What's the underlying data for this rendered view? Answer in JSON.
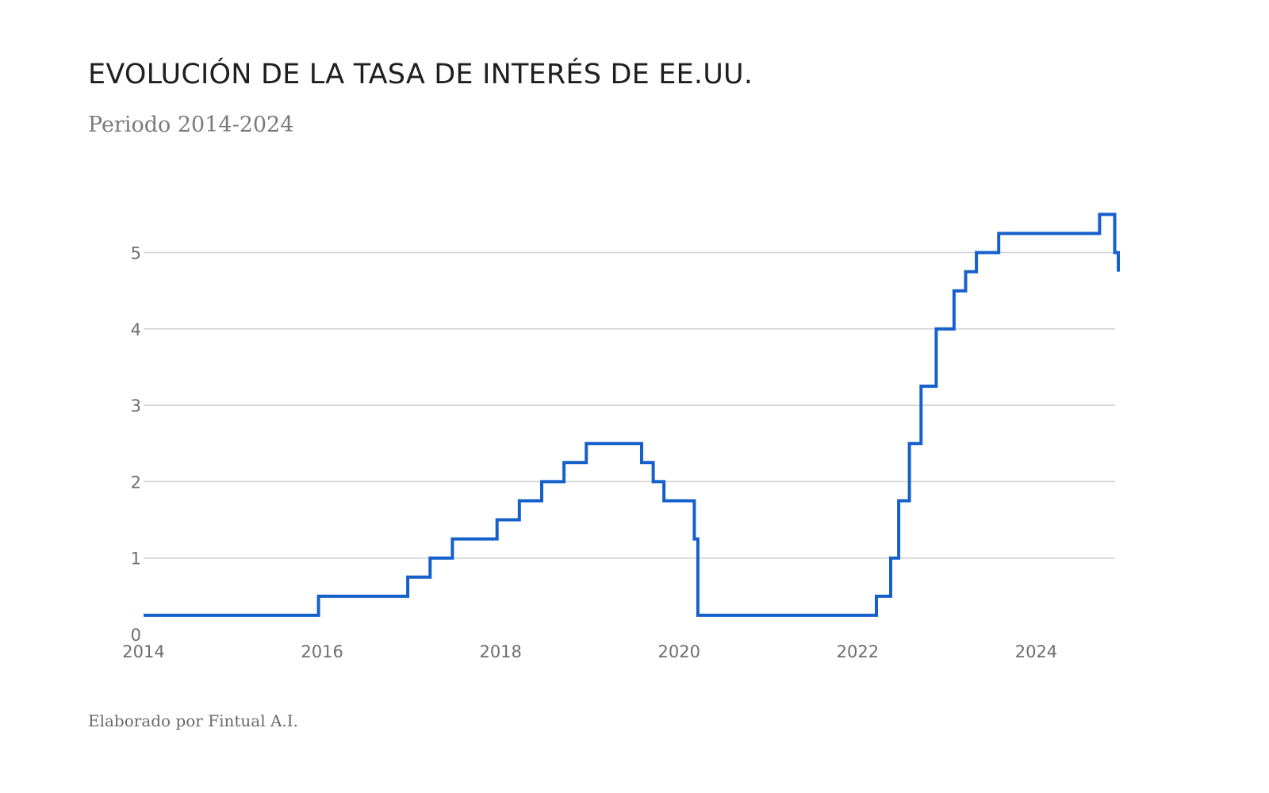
{
  "header": {
    "title": "EVOLUCIÓN DE LA TASA DE INTERÉS DE EE.UU.",
    "subtitle": "Periodo 2014-2024"
  },
  "footer": {
    "credit": "Elaborado por Fintual A.I."
  },
  "colors": {
    "line": "#1660cc",
    "grid": "#cfcfcf",
    "tick_text": "#6e6e6e"
  },
  "chart_data": {
    "type": "line",
    "step": true,
    "title": "EVOLUCIÓN DE LA TASA DE INTERÉS DE EE.UU.",
    "subtitle": "Periodo 2014-2024",
    "xlabel": "",
    "ylabel": "",
    "xlim": [
      2014,
      2024.92
    ],
    "ylim": [
      0,
      5.6
    ],
    "grid": true,
    "x_ticks": [
      2014,
      2016,
      2018,
      2020,
      2022,
      2024
    ],
    "y_ticks": [
      0,
      1,
      2,
      3,
      4,
      5
    ],
    "series": [
      {
        "x": [
          2014.0,
          2015.96,
          2016.96,
          2017.21,
          2017.46,
          2017.96,
          2018.21,
          2018.46,
          2018.71,
          2018.96,
          2019.58,
          2019.71,
          2019.83,
          2020.17,
          2020.21,
          2022.21,
          2022.37,
          2022.46,
          2022.58,
          2022.71,
          2022.88,
          2023.08,
          2023.21,
          2023.33,
          2023.58,
          2024.71,
          2024.88,
          2024.92
        ],
        "y": [
          0.25,
          0.5,
          0.75,
          1.0,
          1.25,
          1.5,
          1.75,
          2.0,
          2.25,
          2.5,
          2.25,
          2.0,
          1.75,
          1.25,
          0.25,
          0.5,
          1.0,
          1.75,
          2.5,
          3.25,
          4.0,
          4.5,
          4.75,
          5.0,
          5.25,
          5.5,
          5.0,
          4.75
        ]
      }
    ]
  }
}
